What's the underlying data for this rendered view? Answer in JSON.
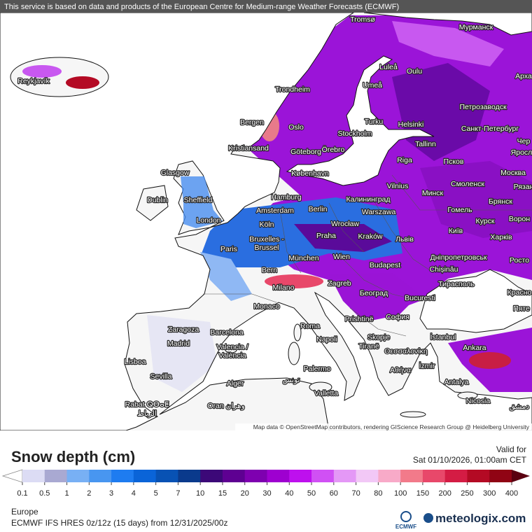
{
  "header": {
    "notice": "This service is based on data and products of the European Centre for Medium-range Weather Forecasts (ECMWF)"
  },
  "map": {
    "labels": [
      "Tromsø",
      "Мурманск",
      "Reykjavík",
      "Luleå",
      "Oulu",
      "Арха",
      "Trondheim",
      "Umeå",
      "Петрозаводск",
      "Bergen",
      "Oslo",
      "Turku",
      "Helsinki",
      "Санкт-Петербург",
      "Stockholm",
      "Чер",
      "Kristiansand",
      "Göteborg",
      "Örebro",
      "Tallinn",
      "Яросл",
      "Псков",
      "Riga",
      "København",
      "Glasgow",
      "Москва",
      "Vilnius",
      "Смоленск",
      "Минск",
      "Рязан",
      "Hamburg",
      "Калининград",
      "Dublin",
      "Sheffield",
      "Брянск",
      "Amsterdam",
      "Berlin",
      "Warszawa",
      "Гомель",
      "London",
      "Köln",
      "Wrocław",
      "Курск",
      "Ворон",
      "Praha",
      "Kraków",
      "Львів",
      "Київ",
      "Харків",
      "Bruxelles -",
      "Brussel",
      "Paris",
      "München",
      "Wien",
      "Дніпропетровськ",
      "Росто",
      "Budapest",
      "Chișinău",
      "Bern",
      "Тирасполь",
      "Zagreb",
      "Milano",
      "Београд",
      "Bucuresti",
      "Красно",
      "Monaco",
      "Пяте",
      "Prishtinë",
      "София",
      "Roma",
      "Zaragoza",
      "Barcelona",
      "Skopje",
      "İstanbul",
      "Napoli",
      "Madrid",
      "Tiranë",
      "Θεσσαλονίκη",
      "Ankara",
      "Valencia /",
      "València",
      "Lisboa",
      "İzmir",
      "Αθήνα",
      "Palermo",
      "Sevilla",
      "تونس",
      "Alger",
      "Antalya",
      "Valletta",
      "Rabat ⵕⴱⴰⵟ",
      "الرباط",
      "Oran وهران",
      "Nicosia",
      "دمشق"
    ],
    "attribution": "Map data © OpenStreetMap contributors, rendering GIScience Research Group @ Heidelberg University"
  },
  "legend": {
    "title": "Snow depth (cm)",
    "valid_label": "Valid for",
    "valid_time": "Sat 01/10/2026, 01:00am CET",
    "ticks": [
      0.1,
      0.5,
      1,
      2,
      3,
      4,
      5,
      7,
      10,
      15,
      20,
      30,
      40,
      50,
      60,
      70,
      80,
      100,
      150,
      200,
      250,
      300,
      400
    ],
    "colors": [
      "#dcdcf4",
      "#a9a9d2",
      "#78b0f4",
      "#4896f0",
      "#1e7cf0",
      "#0a64d8",
      "#0852b4",
      "#0a3a8c",
      "#3c0878",
      "#5e0092",
      "#7e00b0",
      "#9e00d0",
      "#be10ee",
      "#d050f4",
      "#e498f6",
      "#f2c8f6",
      "#f8aac8",
      "#f27a8a",
      "#e8486a",
      "#d41c44",
      "#b40a24",
      "#900414"
    ],
    "under_color": "#ffffff",
    "over_color": "#5a0010"
  },
  "footer": {
    "region": "Europe",
    "model": "ECMWF IFS HRES 0z/12z (15 days) from 12/31/2025/00z",
    "ecmwf_logo": "ECMWF",
    "brand": "meteologix.com"
  }
}
